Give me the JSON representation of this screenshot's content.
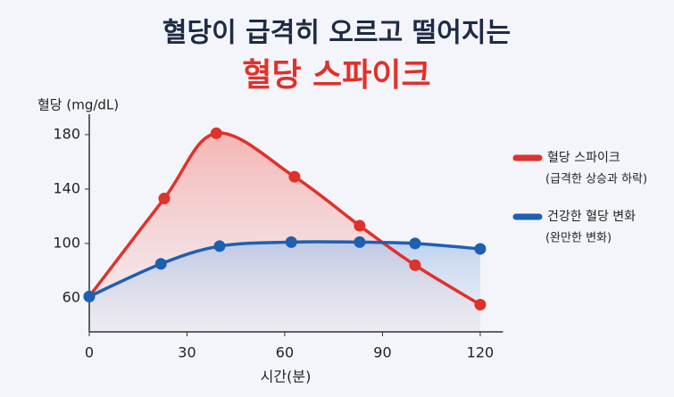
{
  "chart_data": {
    "type": "line",
    "title": "혈당이 급격히 오르고 떨어지는",
    "subtitle": "혈당 스파이크",
    "y_label": "혈당 (mg/dL)",
    "x_label": "시간(분)",
    "series": [
      {
        "name": "혈당 스파이크",
        "note": "(급격한 상승과 하락)",
        "color": "#e0312b",
        "x": [
          0,
          23,
          39,
          63,
          83,
          100,
          120
        ],
        "values": [
          61,
          133,
          181,
          149,
          113,
          84,
          55
        ]
      },
      {
        "name": "건강한 혈당 변화",
        "note": "(완만한 변화)",
        "color": "#1f5fb0",
        "x": [
          0,
          22,
          40,
          62,
          83,
          100,
          120
        ],
        "values": [
          61,
          85,
          98,
          101,
          101,
          100,
          96
        ]
      }
    ],
    "xlim": [
      0,
      127
    ],
    "xticks": [
      0,
      30,
      60,
      90,
      120
    ],
    "ylim": [
      35,
      195
    ],
    "yticks": [
      60,
      100,
      140,
      180
    ]
  }
}
